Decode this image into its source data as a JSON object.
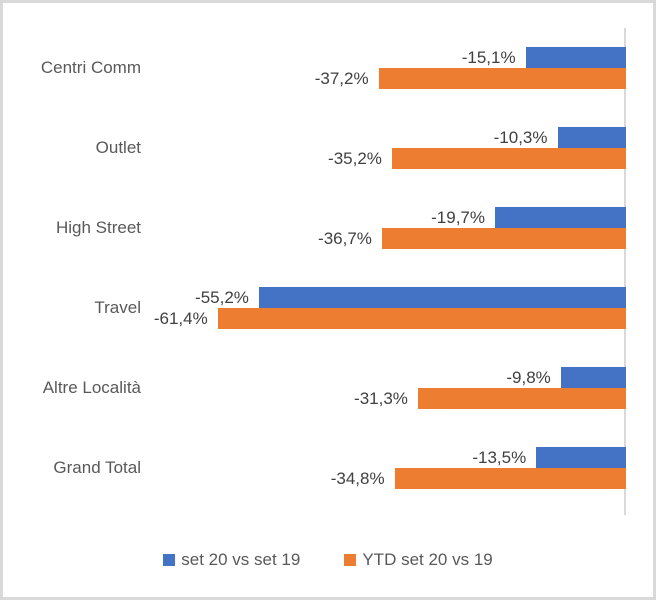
{
  "chart_data": {
    "type": "bar",
    "orientation": "horizontal",
    "title": "",
    "xlabel": "",
    "ylabel": "",
    "xlim": [
      -70,
      0
    ],
    "grid": false,
    "axis_side": "right",
    "legend_position": "bottom",
    "value_suffix": "%",
    "categories": [
      "Centri Comm",
      "Outlet",
      "High Street",
      "Travel",
      "Altre Località",
      "Grand Total"
    ],
    "series": [
      {
        "name": "set 20 vs set 19",
        "color": "#4472C4",
        "values": [
          -15.1,
          -10.3,
          -19.7,
          -55.2,
          -9.8,
          -13.5
        ],
        "labels": [
          "-15,1%",
          "-10,3%",
          "-19,7%",
          "-55,2%",
          "-9,8%",
          "-13,5%"
        ]
      },
      {
        "name": "YTD set 20 vs 19",
        "color": "#ED7D31",
        "values": [
          -37.2,
          -35.2,
          -36.7,
          -61.4,
          -31.3,
          -34.8
        ],
        "labels": [
          "-37,2%",
          "-35,2%",
          "-36,7%",
          "-61,4%",
          "-31,3%",
          "-34,8%"
        ]
      }
    ]
  },
  "colors": {
    "series_blue": "#4472C4",
    "series_orange": "#ED7D31",
    "axis_line": "#d9d9d9",
    "frame_border": "#d9d9d9",
    "category_label_text": "#595959",
    "value_label_text": "#404040",
    "legend_text": "#595959",
    "background": "#ffffff"
  }
}
